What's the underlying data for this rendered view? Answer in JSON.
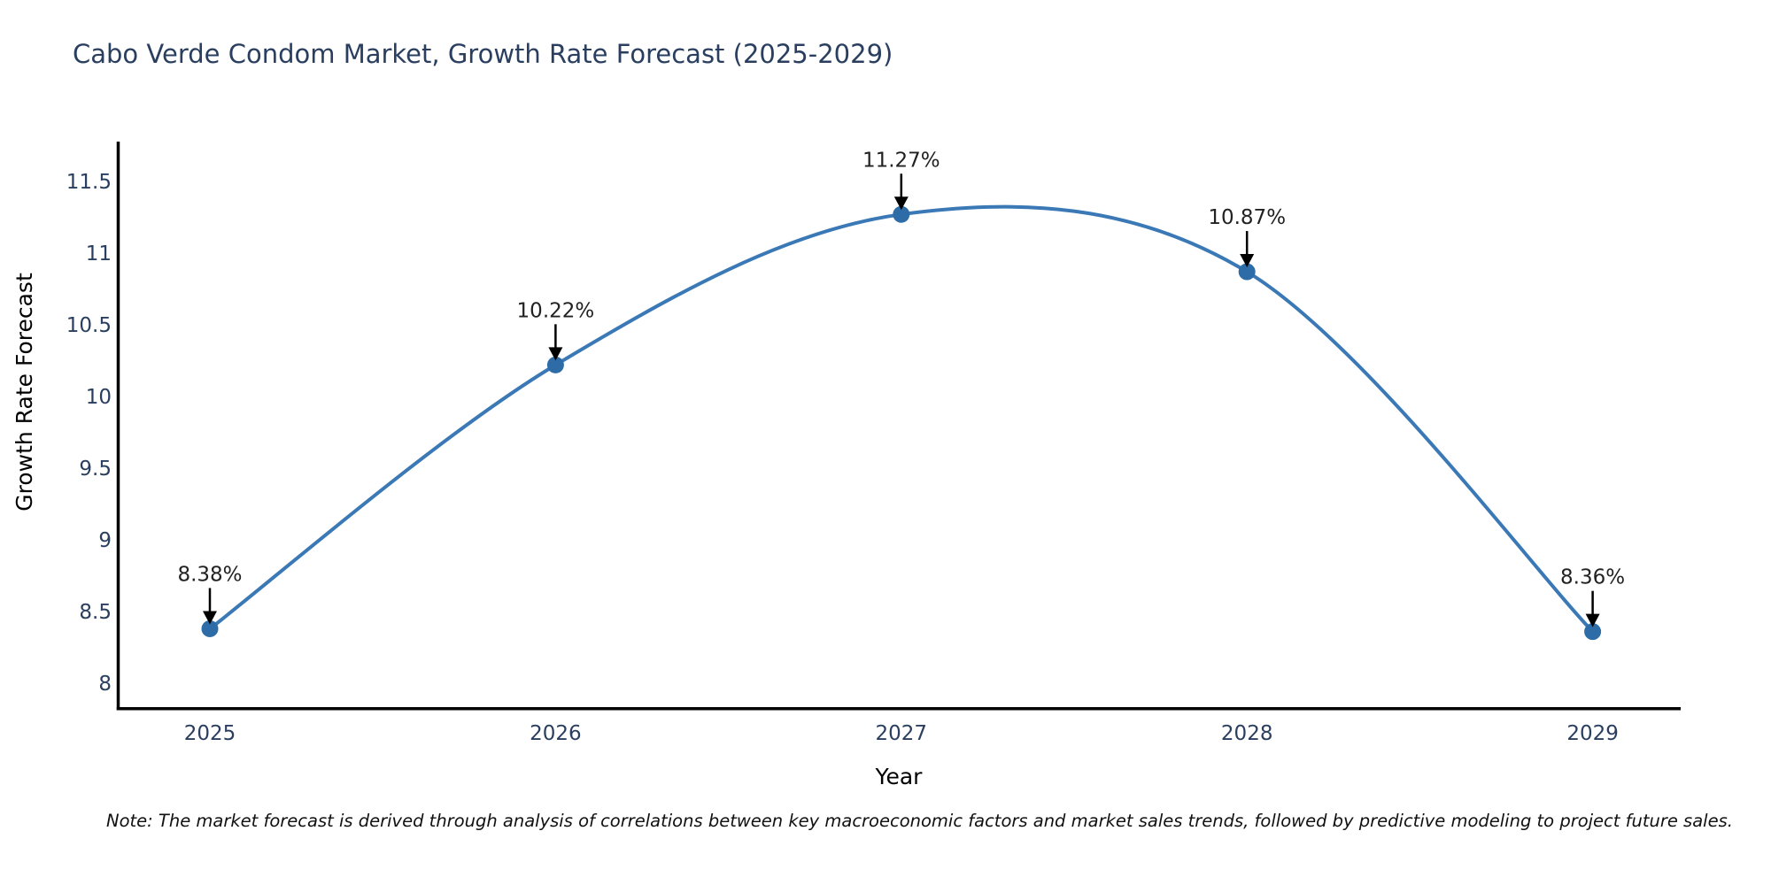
{
  "title": "Cabo Verde Condom Market, Growth Rate Forecast (2025-2029)",
  "note": "Note: The market forecast is derived through analysis of correlations between key macroeconomic factors and market sales trends, followed by predictive modeling to project future sales.",
  "chart_data": {
    "type": "line",
    "line_shape": "spline",
    "title": "Cabo Verde Condom Market, Growth Rate Forecast (2025-2029)",
    "xlabel": "Year",
    "ylabel": "Growth Rate Forecast",
    "categories": [
      "2025",
      "2026",
      "2027",
      "2028",
      "2029"
    ],
    "values": [
      8.38,
      10.22,
      11.27,
      10.87,
      8.36
    ],
    "point_labels": [
      "8.38%",
      "10.22%",
      "11.27%",
      "10.87%",
      "8.36%"
    ],
    "ytick_values": [
      8,
      8.5,
      9,
      9.5,
      10,
      10.5,
      11,
      11.5
    ],
    "ytick_labels": [
      "8",
      "8.5",
      "9",
      "9.5",
      "10",
      "10.5",
      "11",
      "11.5"
    ],
    "ylim": [
      7.83,
      11.67
    ],
    "grid": false,
    "legend": false,
    "markers": true,
    "annotations_arrows": true,
    "colors": {
      "line": "#3a79b6",
      "marker": "#2d6ca6",
      "axis_line": "#000000",
      "text": "#2a3f5f",
      "annotation_text": "#222222",
      "arrow": "#000000",
      "background": "#ffffff"
    }
  }
}
